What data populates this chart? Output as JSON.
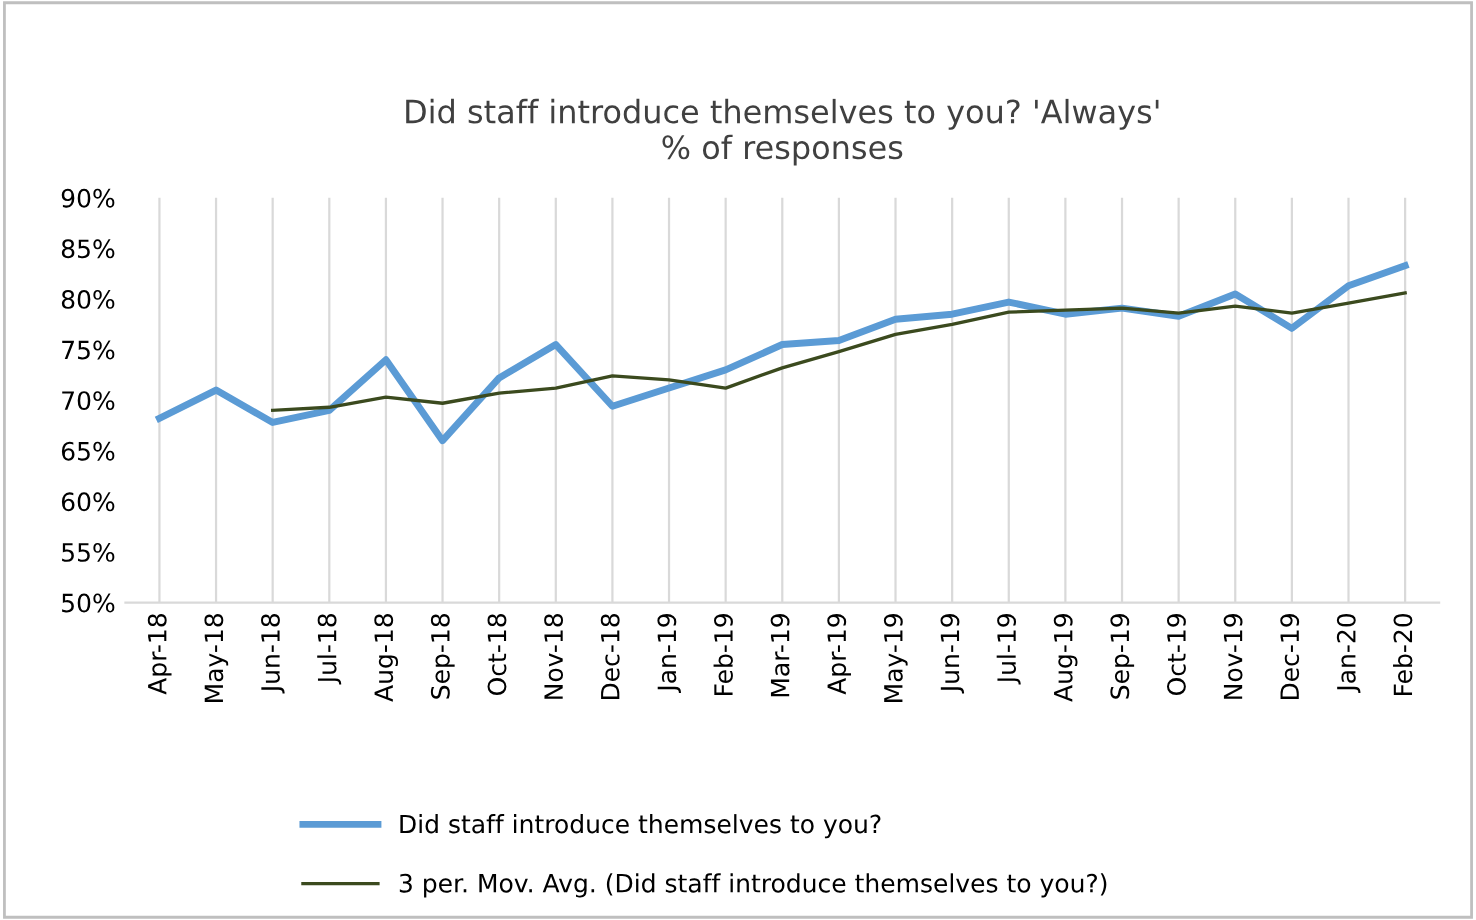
{
  "chart_data": {
    "type": "line",
    "title": "Did staff introduce themselves to you? 'Always'\n% of responses",
    "categories": [
      "Apr-18",
      "May-18",
      "Jun-18",
      "Jul-18",
      "Aug-18",
      "Sep-18",
      "Oct-18",
      "Nov-18",
      "Dec-18",
      "Jan-19",
      "Feb-19",
      "Mar-19",
      "Apr-19",
      "May-19",
      "Jun-19",
      "Jul-19",
      "Aug-19",
      "Sep-19",
      "Oct-19",
      "Nov-19",
      "Dec-19",
      "Jan-20",
      "Feb-20"
    ],
    "series": [
      {
        "name": "Did staff introduce themselves to you?",
        "color": "#5b9bd5",
        "values": [
          68.2,
          71.0,
          67.8,
          69.0,
          74.0,
          66.0,
          72.2,
          75.5,
          69.4,
          71.2,
          73.0,
          75.5,
          75.9,
          78.0,
          78.5,
          79.7,
          78.5,
          79.1,
          78.3,
          80.5,
          77.1,
          81.3,
          83.3
        ]
      },
      {
        "name": "3 per. Mov. Avg. (Did staff introduce themselves to you?)",
        "color": "#3b4a1e",
        "values": [
          null,
          null,
          69.0,
          69.3,
          70.3,
          69.7,
          70.7,
          71.2,
          72.4,
          72.0,
          71.2,
          73.2,
          74.8,
          76.5,
          77.5,
          78.7,
          78.9,
          79.1,
          78.6,
          79.3,
          78.6,
          79.6,
          80.6
        ]
      }
    ],
    "ylim": [
      50,
      90
    ],
    "yticks": [
      {
        "value": 50,
        "label": "50%"
      },
      {
        "value": 55,
        "label": "55%"
      },
      {
        "value": 60,
        "label": "60%"
      },
      {
        "value": 65,
        "label": "65%"
      },
      {
        "value": 70,
        "label": "70%"
      },
      {
        "value": 75,
        "label": "75%"
      },
      {
        "value": 80,
        "label": "80%"
      },
      {
        "value": 85,
        "label": "85%"
      },
      {
        "value": 90,
        "label": "90%"
      }
    ],
    "grid": "x",
    "legend": "bottom",
    "marker": "none",
    "line_style": "solid"
  }
}
